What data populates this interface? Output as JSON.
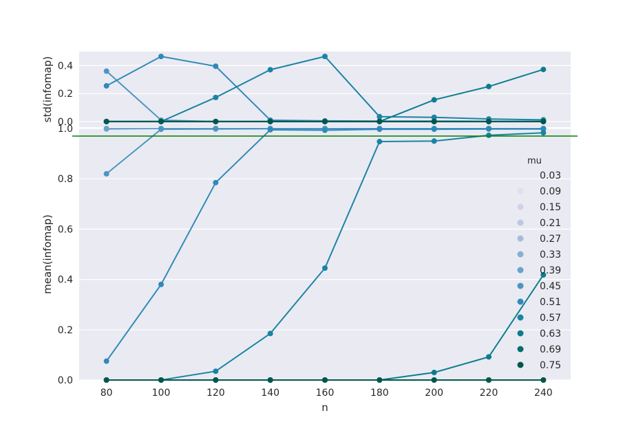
{
  "chart_data": [
    {
      "type": "line",
      "panel": "top",
      "ylabel": "std(infomap)",
      "ylim": [
        -0.04,
        0.5
      ],
      "yticks": [
        "0.0",
        "0.2",
        "0.4"
      ],
      "grid": true,
      "x": [
        80,
        100,
        120,
        140,
        160,
        180,
        200,
        220,
        240
      ],
      "series": [
        {
          "name": "0.03",
          "color": "#ede8f3",
          "values": [
            0,
            0,
            0,
            0,
            0,
            0,
            0,
            0,
            0
          ]
        },
        {
          "name": "0.09",
          "color": "#e1deed",
          "values": [
            0,
            0,
            0,
            0,
            0,
            0,
            0,
            0,
            0
          ]
        },
        {
          "name": "0.15",
          "color": "#d1d2e7",
          "values": [
            0,
            0,
            0,
            0,
            0,
            0,
            0,
            0,
            0
          ]
        },
        {
          "name": "0.21",
          "color": "#bcc8e1",
          "values": [
            0,
            0,
            0,
            0,
            0,
            0,
            0,
            0,
            0
          ]
        },
        {
          "name": "0.27",
          "color": "#a3bcda",
          "values": [
            0,
            0,
            0,
            0,
            0,
            0,
            0,
            0,
            0
          ]
        },
        {
          "name": "0.33",
          "color": "#87b0d3",
          "values": [
            0,
            0,
            0,
            0,
            0,
            0,
            0,
            0,
            0
          ]
        },
        {
          "name": "0.39",
          "color": "#68a2cb",
          "values": [
            0.0,
            0.0,
            0.0,
            0.0,
            0.0,
            0.0,
            0.0,
            0.0,
            0.0
          ]
        },
        {
          "name": "0.45",
          "color": "#4b95c3",
          "values": [
            0.36,
            0.01,
            0.0,
            0.0,
            0.0,
            0.0,
            0.0,
            0.0,
            0.0
          ]
        },
        {
          "name": "0.51",
          "color": "#2f8ab8",
          "values": [
            0.255,
            0.465,
            0.395,
            0.01,
            0.005,
            0.003,
            0.003,
            0.002,
            0.002
          ]
        },
        {
          "name": "0.57",
          "color": "#1a84a3",
          "values": [
            0,
            0,
            0.172,
            0.37,
            0.465,
            0.035,
            0.03,
            0.018,
            0.012
          ]
        },
        {
          "name": "0.63",
          "color": "#0d7d8e",
          "values": [
            0,
            0,
            0,
            0,
            0,
            0,
            0.155,
            0.25,
            0.372
          ]
        },
        {
          "name": "0.69",
          "color": "#036e6d",
          "values": [
            0,
            0,
            0,
            0,
            0,
            0,
            0,
            0,
            0
          ]
        },
        {
          "name": "0.75",
          "color": "#01574c",
          "values": [
            0,
            0,
            0,
            0,
            0,
            0,
            0,
            0,
            0
          ]
        }
      ]
    },
    {
      "type": "line",
      "panel": "bottom",
      "xlabel": "n",
      "ylabel": "mean(infomap)",
      "ylim": [
        0.0,
        1.0
      ],
      "yticks": [
        "0.0",
        "0.2",
        "0.4",
        "0.6",
        "0.8",
        "1.0"
      ],
      "xticks": [
        "80",
        "100",
        "120",
        "140",
        "160",
        "180",
        "200",
        "220",
        "240"
      ],
      "grid": true,
      "reference_line": {
        "y": 1.0,
        "color": "#008000"
      },
      "x": [
        80,
        100,
        120,
        140,
        160,
        180,
        200,
        220,
        240
      ],
      "legend": {
        "title": "mu",
        "placement": "right"
      },
      "series": [
        {
          "name": "0.03",
          "color": "#ede8f3",
          "values": [
            1,
            1,
            1,
            1,
            1,
            1,
            1,
            1,
            1
          ]
        },
        {
          "name": "0.09",
          "color": "#e1deed",
          "values": [
            1,
            1,
            1,
            1,
            1,
            1,
            1,
            1,
            1
          ]
        },
        {
          "name": "0.15",
          "color": "#d1d2e7",
          "values": [
            1,
            1,
            1,
            1,
            1,
            1,
            1,
            1,
            1
          ]
        },
        {
          "name": "0.21",
          "color": "#bcc8e1",
          "values": [
            1,
            1,
            1,
            1,
            1,
            1,
            1,
            1,
            1
          ]
        },
        {
          "name": "0.27",
          "color": "#a3bcda",
          "values": [
            1,
            1,
            1,
            1,
            1,
            1,
            1,
            1,
            1
          ]
        },
        {
          "name": "0.33",
          "color": "#87b0d3",
          "values": [
            1,
            1,
            1,
            1,
            1,
            1,
            1,
            1,
            1
          ]
        },
        {
          "name": "0.39",
          "color": "#68a2cb",
          "values": [
            0.998,
            1,
            1,
            1,
            1,
            1,
            1,
            1,
            1
          ]
        },
        {
          "name": "0.45",
          "color": "#4b95c3",
          "values": [
            0.82,
            0.997,
            0.998,
            0.999,
            0.999,
            0.999,
            0.999,
            0.999,
            0.999
          ]
        },
        {
          "name": "0.51",
          "color": "#2f8ab8",
          "values": [
            0.075,
            0.38,
            0.785,
            0.995,
            0.993,
            0.997,
            0.997,
            0.998,
            0.998
          ]
        },
        {
          "name": "0.57",
          "color": "#1a84a3",
          "values": [
            0,
            0,
            0.035,
            0.185,
            0.445,
            0.948,
            0.95,
            0.973,
            0.983
          ]
        },
        {
          "name": "0.63",
          "color": "#0d7d8e",
          "values": [
            0,
            0,
            0,
            0,
            0,
            0,
            0.03,
            0.092,
            0.418
          ]
        },
        {
          "name": "0.69",
          "color": "#036e6d",
          "values": [
            0,
            0,
            0,
            0,
            0,
            0,
            0,
            0,
            0
          ]
        },
        {
          "name": "0.75",
          "color": "#01574c",
          "values": [
            0,
            0,
            0,
            0,
            0,
            0,
            0,
            0,
            0
          ]
        }
      ]
    }
  ]
}
